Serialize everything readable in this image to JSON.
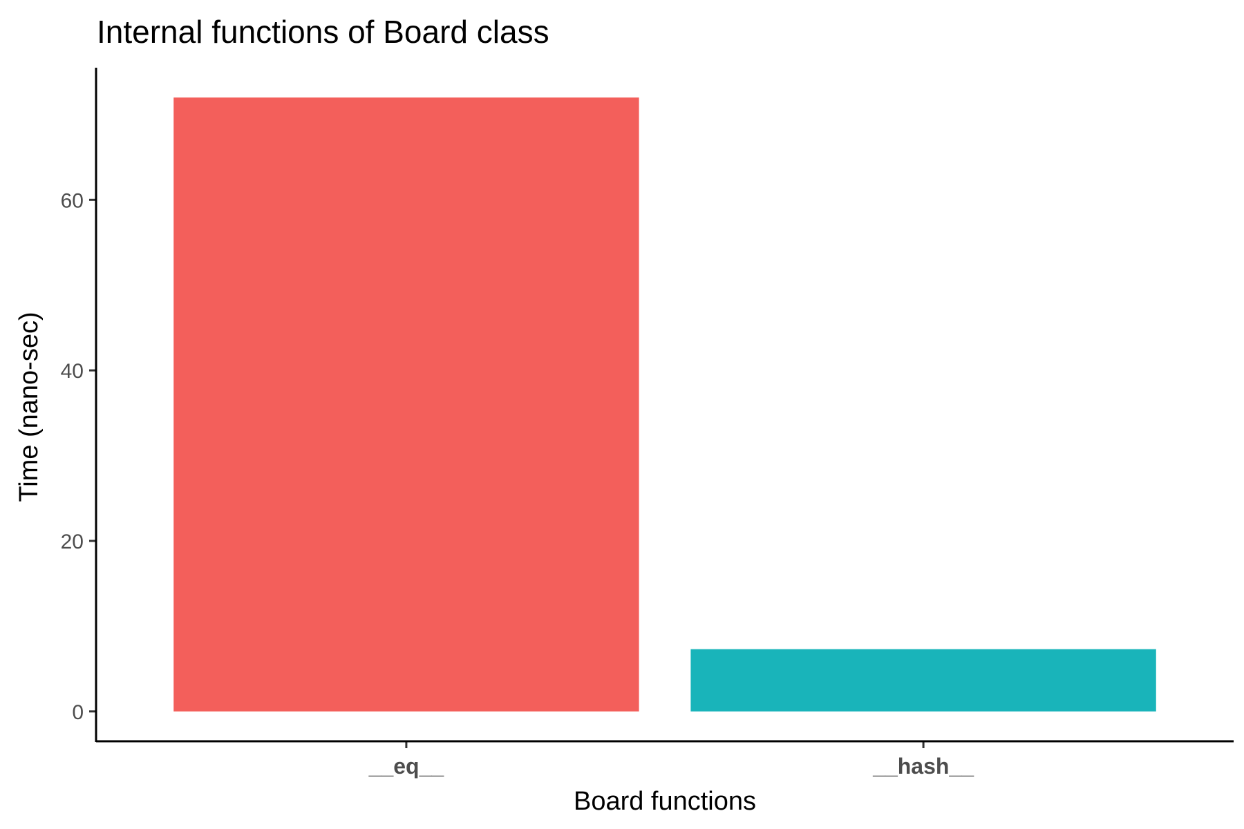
{
  "chart_data": {
    "type": "bar",
    "title": "Internal functions of Board class",
    "xlabel": "Board functions",
    "ylabel": "Time (nano-sec)",
    "categories": [
      "__eq__",
      "__hash__"
    ],
    "values": [
      72,
      7.3
    ],
    "colors": [
      "#F35F5B",
      "#19B4BA"
    ],
    "yticks": [
      0,
      20,
      40,
      60
    ],
    "ylim": [
      -3.5,
      75.5
    ],
    "grid": false,
    "legend": "none"
  }
}
